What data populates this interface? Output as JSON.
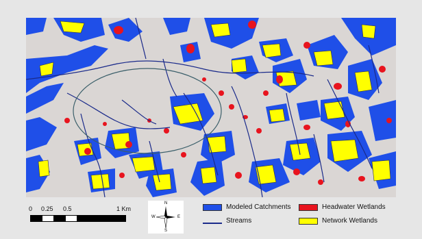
{
  "colors": {
    "background": "#dad6d4",
    "catchment": "#1f4fe8",
    "stream": "#1a2a8a",
    "headwater": "#e8141e",
    "network": "#ffff00",
    "ellipse": "#3b5f6a"
  },
  "scale_bar": {
    "labels": [
      "0",
      "0.25",
      "0.5",
      "1 Km"
    ]
  },
  "north_arrow": {
    "n": "N",
    "s": "S",
    "e": "E",
    "w": "W"
  },
  "legend": {
    "items": [
      {
        "label": "Modeled Catchments",
        "color": "#1f4fe8",
        "kind": "fill"
      },
      {
        "label": "Headwater Wetlands",
        "color": "#e8141e",
        "kind": "fill"
      },
      {
        "label": "Streams",
        "color": "#1a2a8a",
        "kind": "line"
      },
      {
        "label": "Network Wetlands",
        "color": "#ffff00",
        "kind": "fill"
      }
    ]
  }
}
